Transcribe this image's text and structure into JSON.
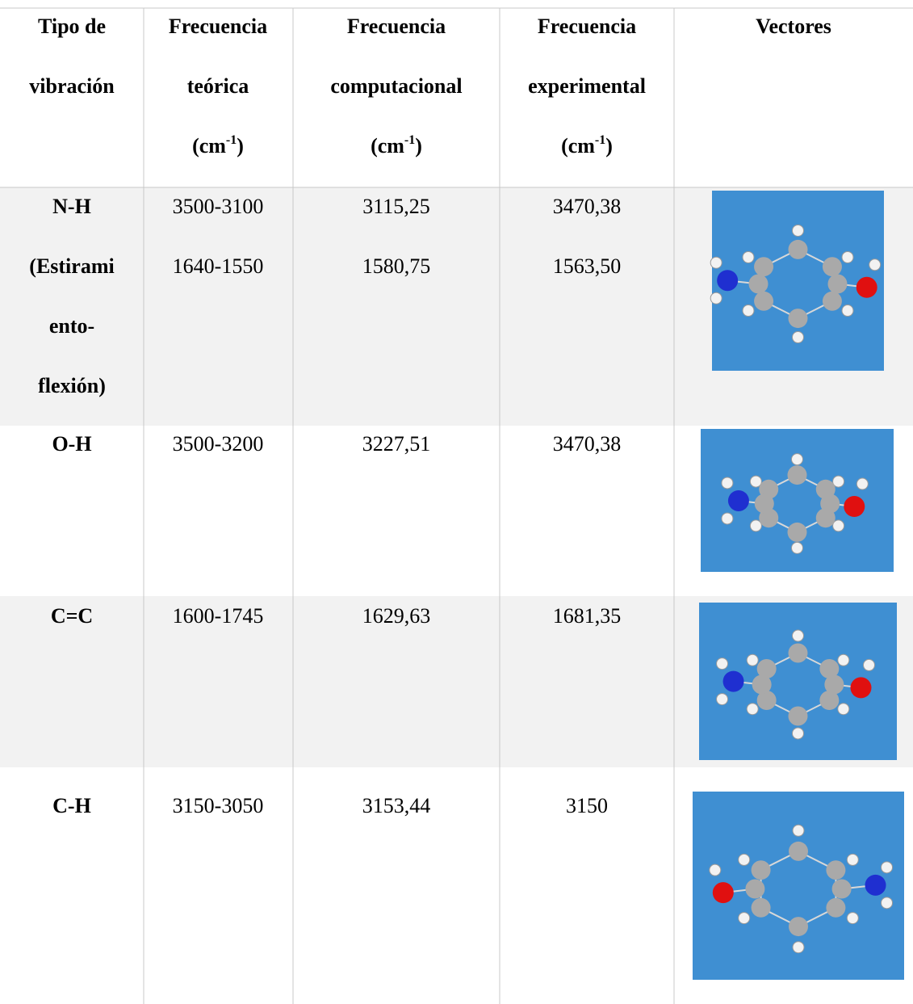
{
  "table": {
    "header": [
      {
        "lines": [
          "Tipo de",
          "vibración"
        ]
      },
      {
        "lines": [
          "Frecuencia",
          "teórica"
        ],
        "unit": [
          "(cm",
          "-1",
          ")"
        ]
      },
      {
        "lines": [
          "Frecuencia",
          "computacional"
        ],
        "unit": [
          "(cm",
          "-1",
          ")"
        ]
      },
      {
        "lines": [
          "Frecuencia",
          "experimental"
        ],
        "unit": [
          "(cm",
          "-1",
          ")"
        ]
      },
      {
        "lines": [
          "Vectores"
        ]
      }
    ],
    "rows": [
      [
        [
          "N-H",
          "(Estirami",
          "ento-",
          "flexión)"
        ],
        [
          "3500-3100",
          "1640-1550"
        ],
        [
          "3115,25",
          "1580,75"
        ],
        [
          "3470,38",
          "1563,50"
        ]
      ],
      [
        [
          "O-H"
        ],
        [
          "3500-3200"
        ],
        [
          "3227,51"
        ],
        [
          "3470,38"
        ]
      ],
      [
        [
          "C=C"
        ],
        [
          "1600-1745"
        ],
        [
          "1629,63"
        ],
        [
          "1681,35"
        ]
      ],
      [
        [
          "C-H"
        ],
        [
          "3150-3050"
        ],
        [
          "3153,44"
        ],
        [
          "3150"
        ]
      ]
    ]
  }
}
